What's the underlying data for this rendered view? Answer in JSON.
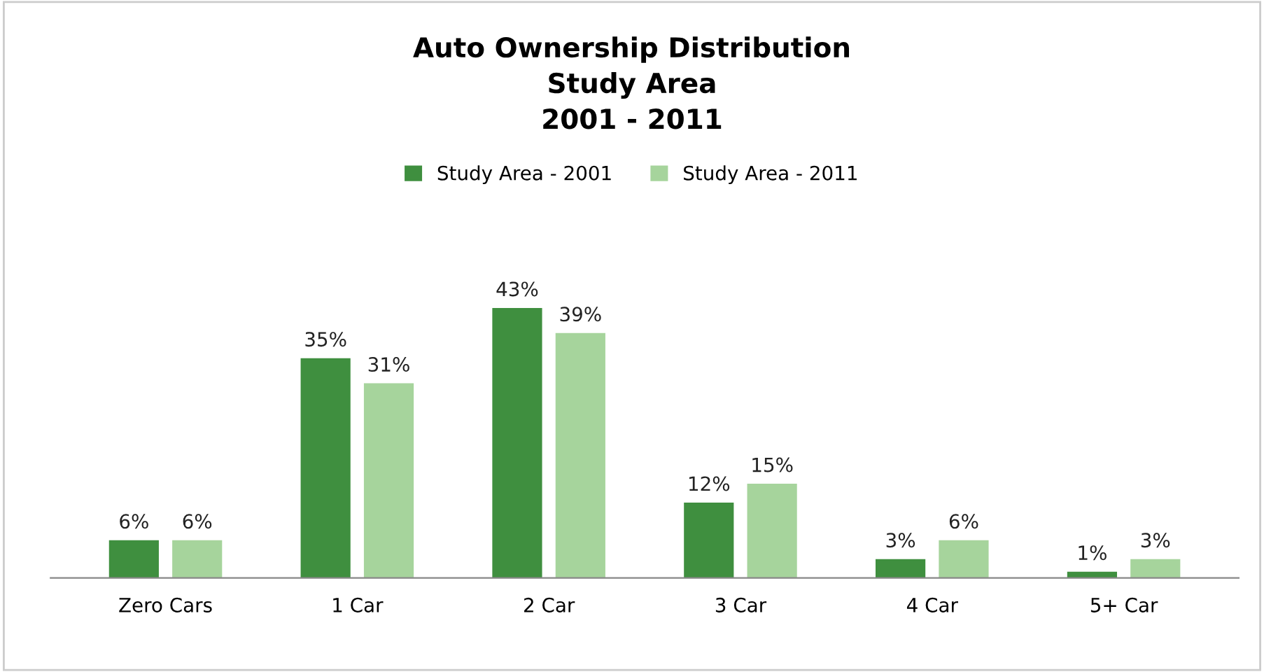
{
  "chart_data": {
    "type": "bar",
    "title": "Auto Ownership Distribution\nStudy Area\n2001 - 2011",
    "categories": [
      "Zero Cars",
      "1 Car",
      "2 Car",
      "3 Car",
      "4 Car",
      "5+ Car"
    ],
    "series": [
      {
        "name": "Study Area - 2001",
        "color": "#3f8f3f",
        "values": [
          6,
          35,
          43,
          12,
          3,
          1
        ],
        "value_labels": [
          "6%",
          "35%",
          "43%",
          "12%",
          "3%",
          "1%"
        ]
      },
      {
        "name": "Study Area - 2011",
        "color": "#a6d49c",
        "values": [
          6,
          31,
          39,
          15,
          6,
          3
        ],
        "value_labels": [
          "6%",
          "31%",
          "39%",
          "15%",
          "6%",
          "3%"
        ]
      }
    ],
    "legend": "top",
    "grid": false
  }
}
